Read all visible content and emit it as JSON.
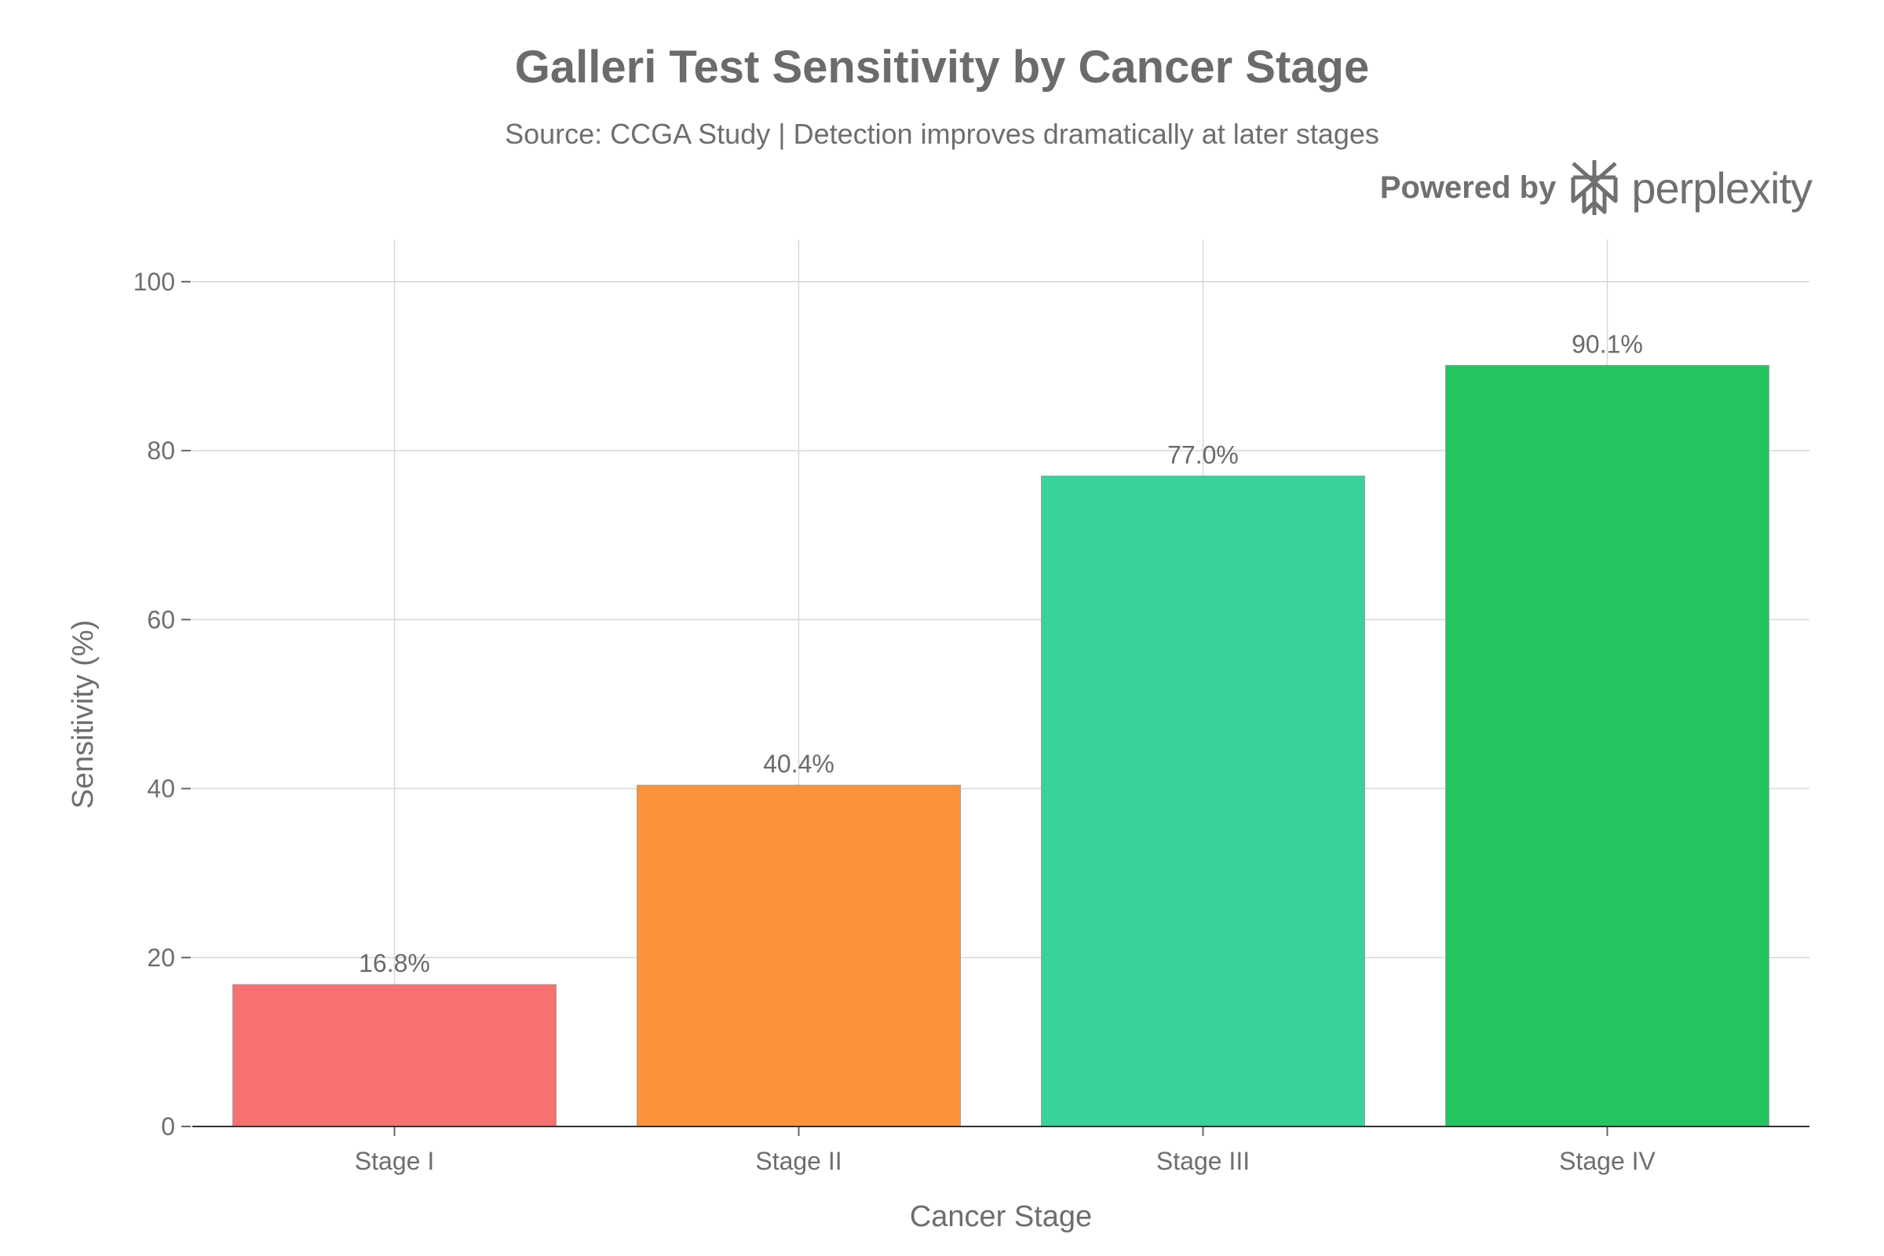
{
  "title": "Galleri Test Sensitivity by Cancer Stage",
  "subtitle": "Source: CCGA Study | Detection improves dramatically at later stages",
  "brand": {
    "prefix": "Powered by",
    "name": "perplexity",
    "icon": "perplexity-logo-icon"
  },
  "chart_data": {
    "type": "bar",
    "categories": [
      "Stage I",
      "Stage II",
      "Stage III",
      "Stage IV"
    ],
    "values": [
      16.8,
      40.4,
      77.0,
      90.1
    ],
    "value_labels": [
      "16.8%",
      "40.4%",
      "77.0%",
      "90.1%"
    ],
    "colors": [
      "#F87171",
      "#FB923C",
      "#37D399",
      "#22C55E"
    ],
    "xlabel": "Cancer Stage",
    "ylabel": "Sensitivity (%)",
    "ylim": [
      0,
      105
    ],
    "yticks": [
      0,
      20,
      40,
      60,
      80,
      100
    ],
    "grid": true,
    "legend": "none"
  }
}
